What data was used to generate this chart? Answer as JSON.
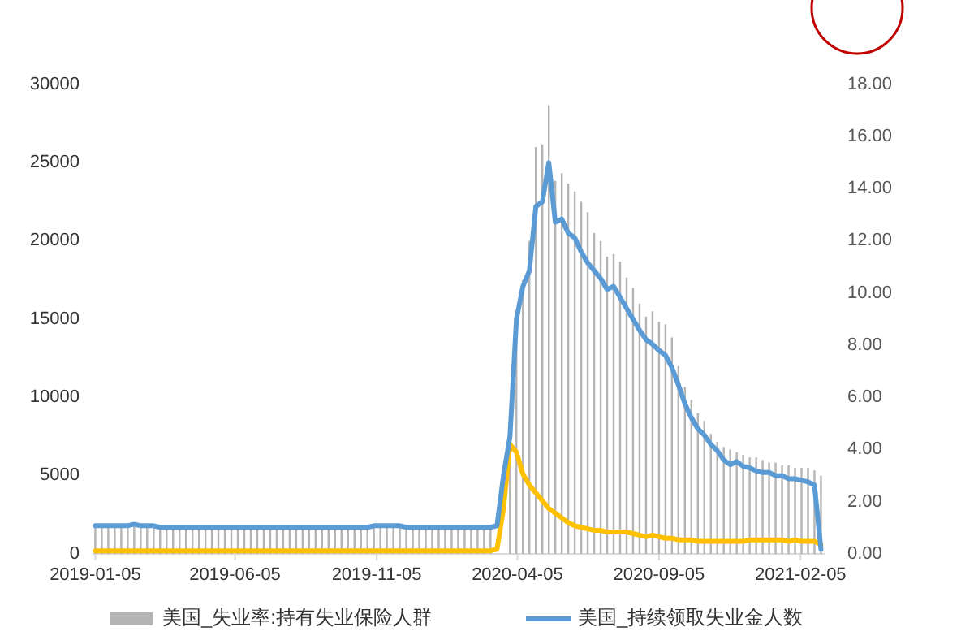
{
  "chart_data": {
    "type": "line",
    "x": [
      "2019-01-05",
      "2019-01-12",
      "2019-01-19",
      "2019-01-26",
      "2019-02-02",
      "2019-02-09",
      "2019-02-16",
      "2019-02-23",
      "2019-03-02",
      "2019-03-09",
      "2019-03-16",
      "2019-03-23",
      "2019-03-30",
      "2019-04-06",
      "2019-04-13",
      "2019-04-20",
      "2019-04-27",
      "2019-05-04",
      "2019-05-11",
      "2019-05-18",
      "2019-05-25",
      "2019-06-01",
      "2019-06-08",
      "2019-06-15",
      "2019-06-22",
      "2019-06-29",
      "2019-07-06",
      "2019-07-13",
      "2019-07-20",
      "2019-07-27",
      "2019-08-03",
      "2019-08-10",
      "2019-08-17",
      "2019-08-24",
      "2019-08-31",
      "2019-09-07",
      "2019-09-14",
      "2019-09-21",
      "2019-09-28",
      "2019-10-05",
      "2019-10-12",
      "2019-10-19",
      "2019-10-26",
      "2019-11-02",
      "2019-11-09",
      "2019-11-16",
      "2019-11-23",
      "2019-11-30",
      "2019-12-07",
      "2019-12-14",
      "2019-12-21",
      "2019-12-28",
      "2020-01-04",
      "2020-01-11",
      "2020-01-18",
      "2020-01-25",
      "2020-02-01",
      "2020-02-08",
      "2020-02-15",
      "2020-02-22",
      "2020-02-29",
      "2020-03-07",
      "2020-03-14",
      "2020-03-21",
      "2020-03-28",
      "2020-04-04",
      "2020-04-11",
      "2020-04-18",
      "2020-04-25",
      "2020-05-02",
      "2020-05-09",
      "2020-05-16",
      "2020-05-23",
      "2020-05-30",
      "2020-06-06",
      "2020-06-13",
      "2020-06-20",
      "2020-06-27",
      "2020-07-04",
      "2020-07-11",
      "2020-07-18",
      "2020-07-25",
      "2020-08-01",
      "2020-08-08",
      "2020-08-15",
      "2020-08-22",
      "2020-08-29",
      "2020-09-05",
      "2020-09-12",
      "2020-09-19",
      "2020-09-26",
      "2020-10-03",
      "2020-10-10",
      "2020-10-17",
      "2020-10-24",
      "2020-10-31",
      "2020-11-07",
      "2020-11-14",
      "2020-11-21",
      "2020-11-28",
      "2020-12-05",
      "2020-12-12",
      "2020-12-19",
      "2020-12-26",
      "2021-01-02",
      "2021-01-09",
      "2021-01-16",
      "2021-01-23",
      "2021-01-30",
      "2021-02-06",
      "2021-02-13",
      "2021-02-20",
      "2021-02-27"
    ],
    "series": [
      {
        "name": "美国_失业率:持有失业保险人群",
        "type": "bar",
        "axis": "y2",
        "color": "#b4b4b4",
        "values": [
          1.1,
          1.1,
          1.1,
          1.1,
          1.1,
          1.1,
          1.1,
          1.1,
          1.1,
          1.1,
          1.1,
          1.1,
          1.1,
          1.1,
          1.1,
          1.1,
          1.1,
          1.1,
          1.1,
          1.1,
          1.1,
          1.1,
          1.1,
          1.1,
          1.1,
          1.1,
          1.1,
          1.1,
          1.1,
          1.1,
          1.1,
          1.1,
          1.1,
          1.1,
          1.1,
          1.1,
          1.1,
          1.1,
          1.1,
          1.1,
          1.1,
          1.1,
          1.1,
          1.1,
          1.1,
          1.1,
          1.1,
          1.1,
          1.1,
          1.1,
          1.1,
          1.1,
          1.1,
          1.1,
          1.1,
          1.1,
          1.1,
          1.1,
          1.1,
          1.1,
          1.1,
          1.1,
          null,
          null,
          4.0,
          8.2,
          10.5,
          12.0,
          15.6,
          15.7,
          17.2,
          14.3,
          14.6,
          14.2,
          13.9,
          13.5,
          13.1,
          12.3,
          12.0,
          11.4,
          11.5,
          11.2,
          10.6,
          10.2,
          9.6,
          9.1,
          9.3,
          8.9,
          8.8,
          8.3,
          7.2,
          6.4,
          5.9,
          5.4,
          5.1,
          4.6,
          4.3,
          4.1,
          4.0,
          3.9,
          3.8,
          3.7,
          3.7,
          3.6,
          3.5,
          3.5,
          3.4,
          3.4,
          3.3,
          3.3,
          3.3,
          3.2,
          3.0
        ]
      },
      {
        "color": "#ffc000",
        "values": [
          200,
          200,
          200,
          200,
          200,
          200,
          200,
          200,
          200,
          200,
          200,
          200,
          200,
          200,
          200,
          200,
          200,
          200,
          200,
          200,
          200,
          200,
          200,
          200,
          200,
          200,
          200,
          200,
          200,
          200,
          200,
          200,
          200,
          200,
          200,
          200,
          200,
          200,
          200,
          200,
          200,
          200,
          200,
          200,
          200,
          200,
          200,
          200,
          200,
          200,
          200,
          200,
          200,
          200,
          200,
          200,
          200,
          200,
          200,
          200,
          200,
          200,
          300,
          2900,
          7000,
          6500,
          5100,
          4400,
          3900,
          3400,
          2900,
          2600,
          2300,
          2000,
          1800,
          1700,
          1600,
          1500,
          1500,
          1400,
          1400,
          1400,
          1400,
          1300,
          1200,
          1100,
          1200,
          1100,
          1000,
          1000,
          900,
          900,
          900,
          800,
          800,
          800,
          800,
          800,
          800,
          800,
          800,
          900,
          900,
          900,
          900,
          900,
          900,
          800,
          900,
          800,
          800,
          800,
          600
        ]
      },
      {
        "name": "美国_持续领取失业金人数",
        "color": "#5b9bd5",
        "values": [
          1800,
          1800,
          1800,
          1800,
          1800,
          1800,
          1900,
          1800,
          1800,
          1800,
          1700,
          1700,
          1700,
          1700,
          1700,
          1700,
          1700,
          1700,
          1700,
          1700,
          1700,
          1700,
          1700,
          1700,
          1700,
          1700,
          1700,
          1700,
          1700,
          1700,
          1700,
          1700,
          1700,
          1700,
          1700,
          1700,
          1700,
          1700,
          1700,
          1700,
          1700,
          1700,
          1700,
          1800,
          1800,
          1800,
          1800,
          1800,
          1700,
          1700,
          1700,
          1700,
          1700,
          1700,
          1700,
          1700,
          1700,
          1700,
          1700,
          1700,
          1700,
          1700,
          1800,
          5000,
          7500,
          15000,
          17100,
          18100,
          22200,
          22500,
          25000,
          21200,
          21400,
          20500,
          20200,
          19300,
          18600,
          18100,
          17600,
          16900,
          17100,
          16400,
          15700,
          15000,
          14300,
          13700,
          13400,
          13000,
          12700,
          11900,
          10800,
          9600,
          8700,
          8000,
          7600,
          7000,
          6600,
          6000,
          5700,
          5900,
          5600,
          5500,
          5300,
          5200,
          5200,
          5000,
          5000,
          4800,
          4800,
          4700,
          4600,
          4400,
          300
        ]
      }
    ],
    "xlim": [
      "2019-01-02",
      "2021-03-03"
    ],
    "xticks": [
      "2019-01-05",
      "2019-06-05",
      "2019-11-05",
      "2020-04-05",
      "2020-09-05",
      "2021-02-05"
    ],
    "ylim": [
      0,
      30000
    ],
    "yticks": [
      0,
      5000,
      10000,
      15000,
      20000,
      25000,
      30000
    ],
    "y2lim": [
      0,
      18
    ],
    "y2ticks": [
      {
        "value": 0,
        "label": "0.00"
      },
      {
        "value": 2,
        "label": "2.00"
      },
      {
        "value": 4,
        "label": "4.00"
      },
      {
        "value": 6,
        "label": "6.00"
      },
      {
        "value": 8,
        "label": "8.00"
      },
      {
        "value": 10,
        "label": "10.00"
      },
      {
        "value": 12,
        "label": "12.00"
      },
      {
        "value": 14,
        "label": "14.00"
      },
      {
        "value": 16,
        "label": "16.00"
      },
      {
        "value": 18,
        "label": "18.00"
      }
    ],
    "legend": "bottom"
  }
}
